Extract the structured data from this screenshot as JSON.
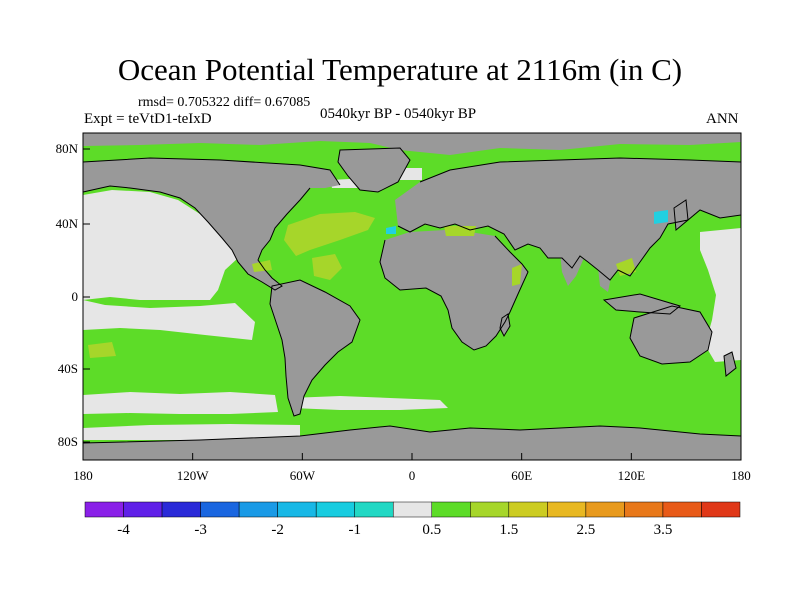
{
  "header": {
    "title": "Ocean Potential Temperature at 2116m (in C)",
    "stats": "rmsd= 0.705322 diff= 0.67085",
    "period": "0540kyr BP - 0540kyr BP",
    "experiment": "Expt = teVtD1-teIxD",
    "season": "ANN"
  },
  "map": {
    "lat_labels": [
      "80N",
      "40N",
      "0",
      "40S",
      "80S"
    ],
    "lon_labels": [
      "180",
      "120W",
      "60W",
      "0",
      "60E",
      "120E",
      "180"
    ],
    "colors": {
      "land": "#999999",
      "ocean_near_zero": "#e6e6e6",
      "ocean_positive": "#5ddc28",
      "ocean_warm": "#a6d62a",
      "ocean_cold": "#22d0e0",
      "coastline": "#000000"
    }
  },
  "colorbar": {
    "colors": [
      "#8a20e8",
      "#6020e8",
      "#2a2ad8",
      "#1a66e0",
      "#1a9ae6",
      "#18b8e6",
      "#18cce0",
      "#22d8c4",
      "#e6e6e6",
      "#5ddc28",
      "#a6d62a",
      "#cccc22",
      "#e8b822",
      "#e89a1e",
      "#e8781a",
      "#e85a18",
      "#e03818"
    ],
    "labels": [
      "-4",
      "-3",
      "-2",
      "-1",
      "0.5",
      "1.5",
      "2.5",
      "3.5"
    ]
  }
}
